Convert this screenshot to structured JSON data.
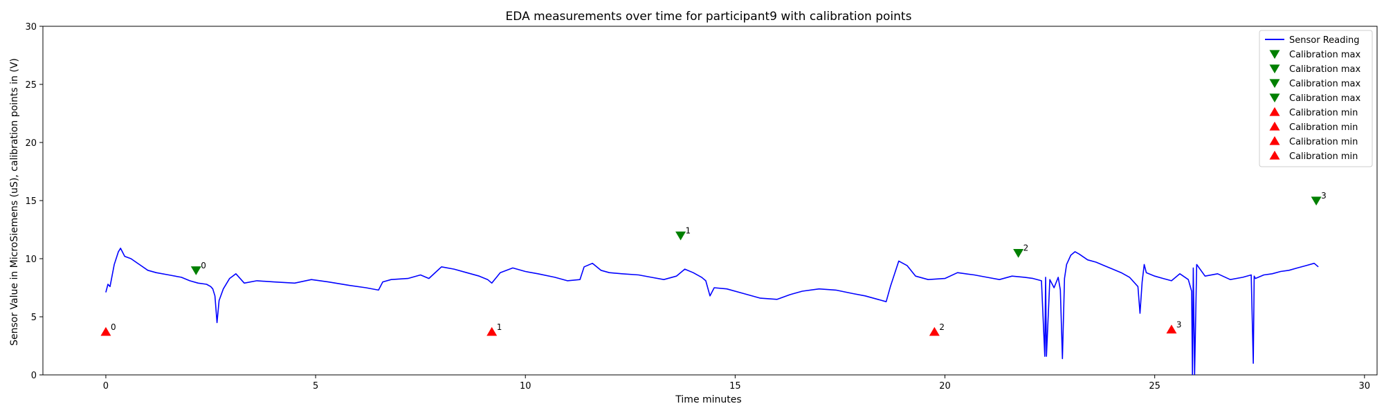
{
  "chart_data": {
    "type": "line",
    "title": "EDA measurements over time for participant9 with calibration points",
    "xlabel": "Time minutes",
    "ylabel": "Sensor Value in MicroSiemens (uS), calibration points in (V)",
    "xlim": [
      -1.5,
      30.3
    ],
    "ylim": [
      0,
      30
    ],
    "xticks": [
      0,
      5,
      10,
      15,
      20,
      25,
      30
    ],
    "yticks": [
      0,
      5,
      10,
      15,
      20,
      25,
      30
    ],
    "grid": false,
    "legend_position": "top-right",
    "colors": {
      "sensor": "#0000ff",
      "cal_max": "#008000",
      "cal_min": "#ff0000"
    },
    "series": [
      {
        "name": "Sensor Reading",
        "kind": "line",
        "x": [
          0.0,
          0.05,
          0.1,
          0.2,
          0.3,
          0.35,
          0.45,
          0.6,
          0.8,
          1.0,
          1.2,
          1.5,
          1.8,
          2.0,
          2.2,
          2.4,
          2.5,
          2.55,
          2.6,
          2.65,
          2.7,
          2.8,
          2.95,
          3.1,
          3.3,
          3.6,
          4.0,
          4.5,
          4.9,
          5.3,
          5.8,
          6.2,
          6.5,
          6.6,
          6.8,
          7.2,
          7.5,
          7.7,
          8.0,
          8.3,
          8.6,
          8.9,
          9.1,
          9.2,
          9.4,
          9.7,
          10.0,
          10.3,
          10.7,
          11.0,
          11.3,
          11.4,
          11.6,
          11.8,
          12.0,
          12.3,
          12.7,
          13.0,
          13.3,
          13.6,
          13.8,
          14.0,
          14.2,
          14.3,
          14.4,
          14.5,
          14.8,
          15.2,
          15.6,
          16.0,
          16.3,
          16.6,
          17.0,
          17.4,
          17.8,
          18.1,
          18.4,
          18.6,
          18.7,
          18.9,
          19.1,
          19.3,
          19.6,
          20.0,
          20.3,
          20.7,
          21.0,
          21.3,
          21.6,
          21.9,
          22.1,
          22.3,
          22.38,
          22.4,
          22.42,
          22.5,
          22.6,
          22.7,
          22.75,
          22.8,
          22.85,
          22.9,
          23.0,
          23.1,
          23.2,
          23.4,
          23.6,
          23.8,
          24.0,
          24.2,
          24.4,
          24.6,
          24.65,
          24.7,
          24.75,
          24.8,
          25.0,
          25.2,
          25.4,
          25.6,
          25.8,
          25.88,
          25.9,
          25.92,
          25.95,
          26.0,
          26.2,
          26.5,
          26.8,
          27.1,
          27.3,
          27.35,
          27.37,
          27.4,
          27.6,
          27.8,
          28.0,
          28.2,
          28.4,
          28.6,
          28.8,
          28.9
        ],
        "y": [
          7.1,
          7.8,
          7.6,
          9.5,
          10.6,
          10.9,
          10.2,
          10.0,
          9.5,
          9.0,
          8.8,
          8.6,
          8.4,
          8.1,
          7.9,
          7.8,
          7.6,
          7.4,
          6.8,
          4.5,
          6.4,
          7.4,
          8.3,
          8.7,
          7.9,
          8.1,
          8.0,
          7.9,
          8.2,
          8.0,
          7.7,
          7.5,
          7.3,
          8.0,
          8.2,
          8.3,
          8.6,
          8.3,
          9.3,
          9.1,
          8.8,
          8.5,
          8.2,
          7.9,
          8.8,
          9.2,
          8.9,
          8.7,
          8.4,
          8.1,
          8.2,
          9.3,
          9.6,
          9.0,
          8.8,
          8.7,
          8.6,
          8.4,
          8.2,
          8.5,
          9.1,
          8.8,
          8.4,
          8.1,
          6.8,
          7.5,
          7.4,
          7.0,
          6.6,
          6.5,
          6.9,
          7.2,
          7.4,
          7.3,
          7.0,
          6.8,
          6.5,
          6.3,
          7.6,
          9.8,
          9.4,
          8.5,
          8.2,
          8.3,
          8.8,
          8.6,
          8.4,
          8.2,
          8.5,
          8.4,
          8.3,
          8.1,
          1.6,
          8.4,
          1.6,
          8.2,
          7.5,
          8.4,
          7.3,
          1.4,
          8.3,
          9.5,
          10.3,
          10.6,
          10.4,
          9.9,
          9.7,
          9.4,
          9.1,
          8.8,
          8.4,
          7.6,
          5.3,
          8.0,
          9.5,
          8.8,
          8.5,
          8.3,
          8.1,
          8.7,
          8.2,
          7.2,
          0.0,
          9.2,
          0.0,
          9.5,
          8.5,
          8.7,
          8.2,
          8.4,
          8.6,
          1.0,
          8.5,
          8.3,
          8.6,
          8.7,
          8.9,
          9.0,
          9.2,
          9.4,
          9.6,
          9.3
        ]
      },
      {
        "name": "Calibration max",
        "kind": "marker",
        "marker": "triangle-down",
        "label": "0",
        "x": [
          2.15
        ],
        "y": [
          9.0
        ]
      },
      {
        "name": "Calibration max",
        "kind": "marker",
        "marker": "triangle-down",
        "label": "1",
        "x": [
          13.7
        ],
        "y": [
          12.0
        ]
      },
      {
        "name": "Calibration max",
        "kind": "marker",
        "marker": "triangle-down",
        "label": "2",
        "x": [
          21.75
        ],
        "y": [
          10.5
        ]
      },
      {
        "name": "Calibration max",
        "kind": "marker",
        "marker": "triangle-down",
        "label": "3",
        "x": [
          28.85
        ],
        "y": [
          15.0
        ]
      },
      {
        "name": "Calibration min",
        "kind": "marker",
        "marker": "triangle-up",
        "label": "0",
        "x": [
          0.0
        ],
        "y": [
          3.7
        ]
      },
      {
        "name": "Calibration min",
        "kind": "marker",
        "marker": "triangle-up",
        "label": "1",
        "x": [
          9.2
        ],
        "y": [
          3.7
        ]
      },
      {
        "name": "Calibration min",
        "kind": "marker",
        "marker": "triangle-up",
        "label": "2",
        "x": [
          19.75
        ],
        "y": [
          3.7
        ]
      },
      {
        "name": "Calibration min",
        "kind": "marker",
        "marker": "triangle-up",
        "label": "3",
        "x": [
          25.4
        ],
        "y": [
          3.9
        ]
      }
    ]
  }
}
